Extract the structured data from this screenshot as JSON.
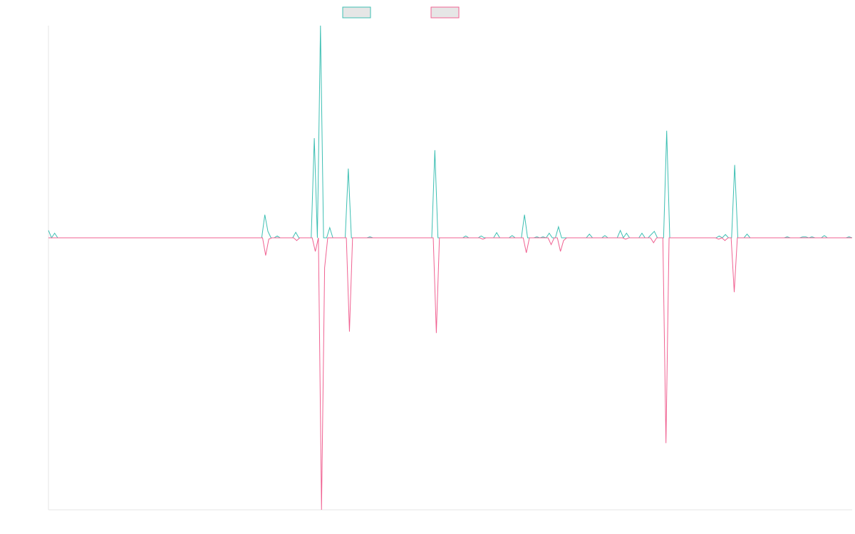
{
  "chart_data": {
    "type": "line",
    "title": "",
    "xlabel": "",
    "ylabel": "",
    "grid": false,
    "legend_position": "top-center",
    "ylim": [
      -1,
      1.15
    ],
    "series": [
      {
        "color": "#3dbfb3",
        "values": [
          0.04,
          0,
          0.025,
          0,
          0,
          0,
          0,
          0,
          0,
          0,
          0,
          0,
          0,
          0,
          0,
          0,
          0,
          0,
          0,
          0,
          0,
          0,
          0,
          0,
          0,
          0,
          0,
          0,
          0,
          0,
          0,
          0,
          0,
          0,
          0,
          0,
          0,
          0,
          0,
          0,
          0,
          0,
          0,
          0,
          0,
          0,
          0,
          0,
          0,
          0,
          0,
          0,
          0,
          0,
          0,
          0,
          0,
          0,
          0,
          0,
          0,
          0,
          0,
          0,
          0,
          0,
          0,
          0,
          0,
          0,
          0.125,
          0.035,
          0,
          0,
          0.01,
          0,
          0,
          0,
          0,
          0,
          0.03,
          0,
          0,
          0,
          0,
          0,
          0.54,
          0,
          1.15,
          0,
          0,
          0.055,
          0,
          0,
          0,
          0,
          0,
          0.375,
          0,
          0,
          0,
          0,
          0,
          0,
          0.005,
          0,
          0,
          0,
          0,
          0,
          0,
          0,
          0,
          0,
          0,
          0,
          0,
          0,
          0,
          0,
          0,
          0,
          0,
          0,
          0,
          0.475,
          0,
          0,
          0,
          0,
          0,
          0,
          0,
          0,
          0,
          0.01,
          0,
          0,
          0,
          0,
          0.01,
          0,
          0,
          0,
          0,
          0.028,
          0,
          0,
          0,
          0,
          0.012,
          0,
          0,
          0,
          0.125,
          0,
          0,
          0,
          0.005,
          0,
          0.005,
          0,
          0.025,
          0,
          0,
          0.06,
          0,
          0,
          0,
          0,
          0,
          0,
          0,
          0,
          0,
          0.02,
          0,
          0,
          0,
          0,
          0.012,
          0,
          0,
          0,
          0,
          0.04,
          0,
          0.025,
          0,
          0,
          0,
          0,
          0.025,
          0,
          0,
          0.018,
          0.035,
          0,
          0,
          0,
          0.58,
          0,
          0,
          0,
          0,
          0,
          0,
          0,
          0,
          0,
          0,
          0,
          0,
          0,
          0,
          0,
          0,
          0.01,
          0,
          0.018,
          0,
          0,
          0.395,
          0,
          0,
          0,
          0.02,
          0,
          0,
          0,
          0,
          0,
          0,
          0,
          0,
          0,
          0,
          0,
          0,
          0.005,
          0,
          0,
          0,
          0,
          0.005,
          0.005,
          0,
          0.005,
          0,
          0,
          0,
          0.012,
          0,
          0,
          0,
          0,
          0,
          0,
          0,
          0.005,
          0
        ]
      },
      {
        "color": "#f06292",
        "values": [
          0,
          0,
          0,
          0,
          0,
          0,
          0,
          0,
          0,
          0,
          0,
          0,
          0,
          0,
          0,
          0,
          0,
          0,
          0,
          0,
          0,
          0,
          0,
          0,
          0,
          0,
          0,
          0,
          0,
          0,
          0,
          0,
          0,
          0,
          0,
          0,
          0,
          0,
          0,
          0,
          0,
          0,
          0,
          0,
          0,
          0,
          0,
          0,
          0,
          0,
          0,
          0,
          0,
          0,
          0,
          0,
          0,
          0,
          0,
          0,
          0,
          0,
          0,
          0,
          0,
          0,
          0,
          0,
          0,
          0,
          -0.065,
          -0.005,
          0,
          0,
          0,
          0,
          0,
          0,
          0,
          0,
          -0.01,
          0,
          0,
          0,
          0,
          0,
          -0.05,
          0,
          -1,
          -0.11,
          0,
          0,
          0,
          0,
          0,
          0,
          0,
          -0.345,
          0,
          0,
          0,
          0,
          0,
          0,
          0,
          0,
          0,
          0,
          0,
          0,
          0,
          0,
          0,
          0,
          0,
          0,
          0,
          0,
          0,
          0,
          0,
          0,
          0,
          0,
          0,
          -0.35,
          0,
          0,
          0,
          0,
          0,
          0,
          0,
          0,
          0,
          0,
          0,
          0,
          0,
          0,
          -0.005,
          0,
          0,
          0,
          0,
          0,
          0,
          0,
          0,
          0,
          0,
          0,
          0,
          0,
          -0.055,
          0,
          0,
          0,
          0,
          0,
          0,
          0,
          -0.025,
          0,
          0,
          -0.05,
          -0.01,
          0,
          0,
          0,
          0,
          0,
          0,
          0,
          0,
          0,
          0,
          0,
          0,
          0,
          0,
          0,
          0,
          0,
          0,
          0,
          -0.005,
          0,
          0,
          0,
          0,
          0,
          0,
          0,
          0,
          -0.018,
          0,
          0,
          0,
          -0.755,
          0,
          0,
          0,
          0,
          0,
          0,
          0,
          0,
          0,
          0,
          0,
          0,
          0,
          0,
          0,
          0,
          -0.005,
          0,
          -0.01,
          0,
          0,
          -0.2,
          0,
          0,
          0,
          0,
          0,
          0,
          0,
          0,
          0,
          0,
          0,
          0,
          0,
          0,
          0,
          0,
          0,
          0,
          0,
          0,
          0,
          0,
          0,
          0,
          0,
          0,
          0,
          0,
          0,
          0,
          0,
          0,
          0,
          0,
          0,
          0,
          0,
          0
        ]
      }
    ]
  }
}
